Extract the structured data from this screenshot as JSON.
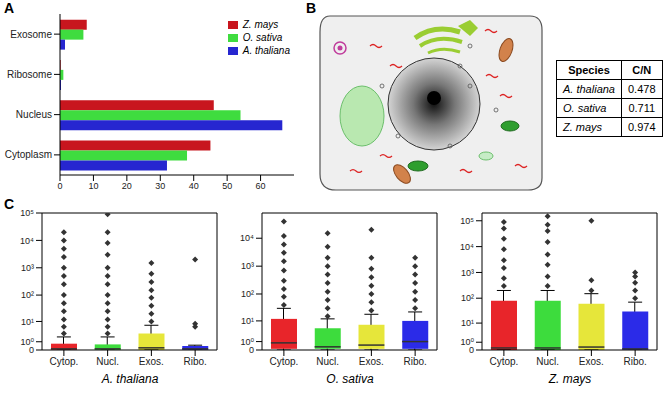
{
  "panel_labels": [
    "A",
    "B",
    "C"
  ],
  "chart_data": [
    {
      "type": "bar",
      "orientation": "horizontal",
      "categories": [
        "Exosome",
        "Ribosome",
        "Nucleus",
        "Cytoplasm"
      ],
      "series": [
        {
          "name": "Z. mays",
          "color": "#c8161e",
          "values": [
            8,
            0.2,
            46,
            45
          ]
        },
        {
          "name": "O. sativa",
          "color": "#3fdc3f",
          "values": [
            7,
            1,
            54,
            38
          ]
        },
        {
          "name": "A. thaliana",
          "color": "#2626d0",
          "values": [
            1.5,
            0.3,
            66.5,
            32
          ]
        }
      ],
      "xlim": [
        0,
        70
      ],
      "xticks": [
        0,
        10,
        20,
        30,
        40,
        50,
        60
      ],
      "legend": "upper right"
    },
    {
      "type": "box",
      "title": "A. thaliana",
      "categories": [
        "Cytop.",
        "Nucl.",
        "Exos.",
        "Ribo."
      ],
      "colors": [
        "#e8252a",
        "#3ddc3d",
        "#e6e63a",
        "#2b2be8"
      ],
      "log": "y",
      "ylim": [
        0,
        100000
      ],
      "yticks": [
        0,
        {
          "value": 1,
          "label": "10⁰"
        },
        {
          "value": 10,
          "label": "10¹"
        },
        {
          "value": 100,
          "label": "10²"
        },
        {
          "value": 1000,
          "label": "10³"
        },
        {
          "value": 10000,
          "label": "10⁴"
        },
        {
          "value": 100000,
          "label": "10⁵"
        }
      ],
      "boxes": [
        {
          "whisker_low": 0,
          "q1": 0,
          "median": 0.1,
          "q3": 0.7,
          "whisker_high": 2,
          "outliers": [
            3,
            6,
            12,
            25,
            50,
            100,
            250,
            500,
            1000,
            2500,
            5000,
            10000,
            20000
          ]
        },
        {
          "whisker_low": 0,
          "q1": 0,
          "median": 0.1,
          "q3": 0.6,
          "whisker_high": 2,
          "outliers": [
            3,
            6,
            12,
            25,
            50,
            100,
            250,
            500,
            1000,
            3000,
            8000,
            20000,
            90000
          ]
        },
        {
          "whisker_low": 0,
          "q1": 0,
          "median": 0.2,
          "q3": 3,
          "whisker_high": 7,
          "outliers": [
            10,
            20,
            40,
            80,
            150,
            300,
            600,
            1500
          ]
        },
        {
          "whisker_low": 0,
          "q1": 0,
          "median": 0.1,
          "q3": 0.4,
          "whisker_high": 0.5,
          "outliers": [
            6,
            8,
            2000
          ]
        }
      ]
    },
    {
      "type": "box",
      "title": "O. sativa",
      "categories": [
        "Cytop.",
        "Nucl.",
        "Exos.",
        "Ribo."
      ],
      "colors": [
        "#e8252a",
        "#3ddc3d",
        "#e6e63a",
        "#2b2be8"
      ],
      "log": "y",
      "ylim": [
        0,
        80000
      ],
      "yticks": [
        0,
        {
          "value": 1,
          "label": "10⁰"
        },
        {
          "value": 10,
          "label": "10¹"
        },
        {
          "value": 100,
          "label": "10²"
        },
        {
          "value": 1000,
          "label": "10³"
        },
        {
          "value": 10000,
          "label": "10⁴"
        }
      ],
      "boxes": [
        {
          "whisker_low": 0,
          "q1": 0.1,
          "median": 0.8,
          "q3": 12,
          "whisker_high": 30,
          "outliers": [
            40,
            80,
            150,
            300,
            700,
            1500,
            3000,
            6000,
            12000,
            40000
          ]
        },
        {
          "whisker_low": 0,
          "q1": 0.1,
          "median": 0.3,
          "q3": 5,
          "whisker_high": 12,
          "outliers": [
            15,
            30,
            60,
            120,
            250,
            500,
            1000,
            2000,
            5000,
            15000
          ]
        },
        {
          "whisker_low": 0,
          "q1": 0.1,
          "median": 0.5,
          "q3": 7,
          "whisker_high": 18,
          "outliers": [
            25,
            50,
            100,
            200,
            400,
            800,
            2000,
            20000
          ]
        },
        {
          "whisker_low": 0,
          "q1": 0.1,
          "median": 1,
          "q3": 10,
          "whisker_high": 22,
          "outliers": [
            30,
            60,
            120,
            250,
            500,
            1000,
            2000
          ]
        }
      ]
    },
    {
      "type": "box",
      "title": "Z. mays",
      "categories": [
        "Cytop.",
        "Nucl.",
        "Exos.",
        "Ribo."
      ],
      "colors": [
        "#e8252a",
        "#3ddc3d",
        "#e6e63a",
        "#2b2be8"
      ],
      "log": "y",
      "ylim": [
        0,
        200000
      ],
      "yticks": [
        0,
        {
          "value": 1,
          "label": "10⁰"
        },
        {
          "value": 10,
          "label": "10¹"
        },
        {
          "value": 100,
          "label": "10²"
        },
        {
          "value": 1000,
          "label": "10³"
        },
        {
          "value": 10000,
          "label": "10⁴"
        },
        {
          "value": 100000,
          "label": "10⁵"
        }
      ],
      "boxes": [
        {
          "whisker_low": 0,
          "q1": 0,
          "median": 0.2,
          "q3": 80,
          "whisker_high": 200,
          "outliers": [
            300,
            600,
            1500,
            3000,
            8000,
            20000,
            50000,
            90000
          ]
        },
        {
          "whisker_low": 0,
          "q1": 0,
          "median": 0.2,
          "q3": 80,
          "whisker_high": 200,
          "outliers": [
            300,
            700,
            2000,
            5000,
            15000,
            40000,
            70000,
            150000
          ]
        },
        {
          "whisker_low": 0,
          "q1": 0,
          "median": 0.3,
          "q3": 60,
          "whisker_high": 150,
          "outliers": [
            200,
            500,
            100000
          ]
        },
        {
          "whisker_low": 0,
          "q1": 0,
          "median": 0.1,
          "q3": 30,
          "whisker_high": 70,
          "outliers": [
            100,
            200,
            400,
            700,
            1000
          ]
        }
      ]
    }
  ],
  "table": {
    "columns": [
      "Species",
      "C/N"
    ],
    "rows": [
      [
        "A. thaliana",
        0.478
      ],
      [
        "O. sativa",
        0.711
      ],
      [
        "Z. mays",
        0.974
      ]
    ]
  }
}
